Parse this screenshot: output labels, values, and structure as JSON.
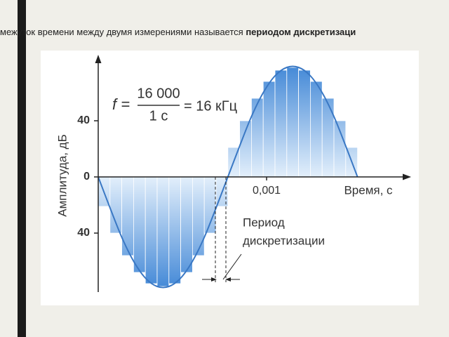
{
  "caption": {
    "text": "межуток времени между двумя измерениями называется",
    "bold": "периодом дискретизаци"
  },
  "chart_data": {
    "type": "bar",
    "x_label": "Время, с",
    "y_label": "Амплитуда, дБ",
    "annotations": {
      "formula_left": "f =",
      "numerator": "16 000",
      "denominator": "1 с",
      "formula_right": "= 16 кГц",
      "period_line1": "Период",
      "period_line2": "дискретизации"
    },
    "xlim": [
      0,
      0.0018
    ],
    "xticks": [
      {
        "value": 0.001,
        "label": "0,001"
      }
    ],
    "ylim": [
      -82,
      82
    ],
    "yticks": [
      {
        "value": -40,
        "label": "40"
      },
      0,
      40
    ],
    "series": [
      {
        "type": "bar",
        "color": "#3f86d6",
        "x": [
          3.5e-05,
          0.000105,
          0.000175,
          0.000245,
          0.000315,
          0.000385,
          0.000455,
          0.000525,
          0.000595,
          0.000665,
          0.000735,
          0.000805,
          0.000875,
          0.000945,
          0.001015,
          0.001085,
          0.001155,
          0.001225,
          0.001295,
          0.001365,
          0.001435,
          0.001505
        ],
        "values": [
          -21,
          -40,
          -56,
          -68,
          -76,
          -78,
          -76,
          -68,
          -56,
          -40,
          -21,
          21,
          40,
          56,
          68,
          76,
          78,
          76,
          68,
          56,
          40,
          21
        ]
      },
      {
        "type": "line",
        "color": "#3a78c4",
        "x": [
          0,
          7e-05,
          0.00014,
          0.00021,
          0.00028,
          0.00035,
          0.00042,
          0.00049,
          0.00056,
          0.00063,
          0.0007,
          0.00077,
          0.00084,
          0.00091,
          0.00098,
          0.00105,
          0.00112,
          0.00119,
          0.00126,
          0.00133,
          0.0014,
          0.00147,
          0.00154
        ],
        "values": [
          0,
          -22,
          -43,
          -60,
          -72,
          -78,
          -78,
          -72,
          -60,
          -43,
          -22,
          0,
          22,
          43,
          60,
          72,
          78,
          78,
          72,
          60,
          43,
          22,
          0
        ]
      }
    ]
  }
}
